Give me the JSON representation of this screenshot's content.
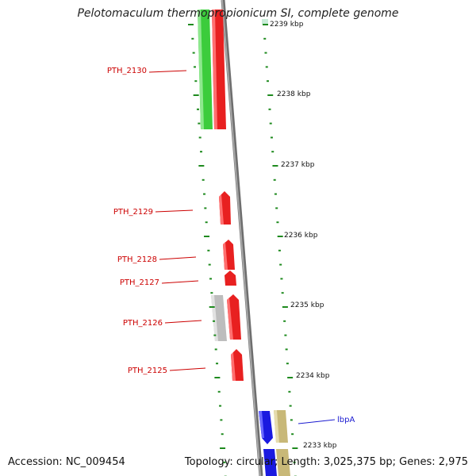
{
  "title": "Pelotomaculum thermopropionicum SI, complete genome",
  "accession": "Accession: NC_009454",
  "topology": "Topology: circular; Length: 3,025,375 bp; Genes: 2,975",
  "colors": {
    "backbone": "#8a8a8a",
    "tick": "#1e8a1e",
    "red_gene": "#e82020",
    "green_gene": "#3ccc3c",
    "gray_gene": "#bdbdbd",
    "blue_gene": "#1a1ae0",
    "tan_gene": "#c8b878",
    "red_label": "#cc0000",
    "blue_label": "#1a1ad0"
  },
  "kbp_labels": [
    "2239 kbp",
    "2238 kbp",
    "2237 kbp",
    "2236 kbp",
    "2235 kbp",
    "2234 kbp",
    "2233 kbp"
  ],
  "gene_labels": [
    {
      "text": "PTH_2130",
      "color": "red"
    },
    {
      "text": "PTH_2129",
      "color": "red"
    },
    {
      "text": "PTH_2128",
      "color": "red"
    },
    {
      "text": "PTH_2127",
      "color": "red"
    },
    {
      "text": "PTH_2126",
      "color": "red"
    },
    {
      "text": "PTH_2125",
      "color": "red"
    },
    {
      "text": "lbpA",
      "color": "blue"
    }
  ]
}
